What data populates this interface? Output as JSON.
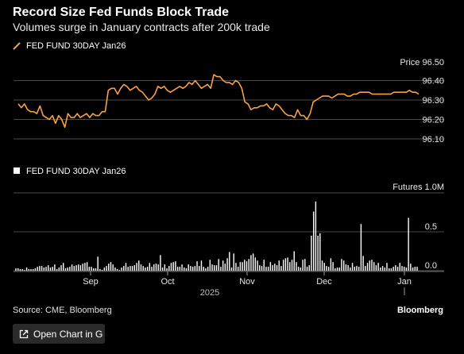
{
  "header": {
    "title": "Record Size Fed Funds Block Trade",
    "subtitle": "Volumes surge in January contracts after 200k trade"
  },
  "footer": {
    "source": "Source: CME, Bloomberg",
    "brand": "Bloomberg",
    "open_chart_label": "Open Chart in G"
  },
  "colors": {
    "price_line": "#f5a04a",
    "volume_bar": "#ffffff",
    "grid": "#4a4a4a",
    "axis_text": "#e6e6e6"
  },
  "chart_data": [
    {
      "type": "line",
      "legend": "FED FUND 30DAY Jan26",
      "unit_label": "Price",
      "ylim": [
        96.1,
        96.5
      ],
      "yticks": [
        96.1,
        96.2,
        96.3,
        96.4,
        96.5
      ],
      "ytick_labels": [
        "96.10",
        "96.20",
        "96.30",
        "96.40",
        "96.50"
      ],
      "grid": true,
      "series": [
        {
          "values": [
            96.28,
            96.26,
            96.28,
            96.25,
            96.24,
            96.24,
            96.23,
            96.27,
            96.22,
            96.21,
            96.2,
            96.22,
            96.18,
            96.22,
            96.2,
            96.16,
            96.23,
            96.21,
            96.21,
            96.23,
            96.21,
            96.22,
            96.23,
            96.21,
            96.23,
            96.22,
            96.22,
            96.24,
            96.24,
            96.35,
            96.36,
            96.36,
            96.33,
            96.36,
            96.38,
            96.37,
            96.35,
            96.36,
            96.37,
            96.35,
            96.34,
            96.32,
            96.3,
            96.31,
            96.33,
            96.37,
            96.36,
            96.37,
            96.35,
            96.34,
            96.35,
            96.36,
            96.37,
            96.36,
            96.37,
            96.39,
            96.38,
            96.4,
            96.38,
            96.36,
            96.37,
            96.38,
            96.36,
            96.43,
            96.42,
            96.42,
            96.4,
            96.39,
            96.39,
            96.38,
            96.4,
            96.39,
            96.36,
            96.29,
            96.28,
            96.25,
            96.26,
            96.26,
            96.27,
            96.27,
            96.28,
            96.26,
            96.25,
            96.28,
            96.27,
            96.25,
            96.23,
            96.22,
            96.22,
            96.21,
            96.25,
            96.22,
            96.22,
            96.2,
            96.23,
            96.29,
            96.3,
            96.31,
            96.32,
            96.32,
            96.32,
            96.31,
            96.32,
            96.33,
            96.33,
            96.33,
            96.32,
            96.32,
            96.33,
            96.33,
            96.34,
            96.34,
            96.34,
            96.34,
            96.33,
            96.33,
            96.33,
            96.33,
            96.33,
            96.33,
            96.33,
            96.34,
            96.34,
            96.34,
            96.34,
            96.34,
            96.35,
            96.34,
            96.34,
            96.33
          ]
        }
      ]
    },
    {
      "type": "bar",
      "legend": "FED FUND 30DAY Jan26",
      "unit_label": "Futures 1.0M",
      "ylim": [
        -0.04,
        0.95
      ],
      "yticks": [
        0.0,
        0.5
      ],
      "ytick_labels": [
        "0.0",
        "0.5"
      ],
      "grid": true,
      "series": [
        {
          "values": [
            0.03,
            0.03,
            0.02,
            0.02,
            0.01,
            0.04,
            0.02,
            0.02,
            0.02,
            0.03,
            0.05,
            0.06,
            0.06,
            0.04,
            0.05,
            0.07,
            0.04,
            0.05,
            0.08,
            0.02,
            0.04,
            0.07,
            0.1,
            0.03,
            0.04,
            0.05,
            0.08,
            0.06,
            0.07,
            0.08,
            0.07,
            0.09,
            0.1,
            0.11,
            0.05,
            0.05,
            0.03,
            0.03,
            0.18,
            0.02,
            0.01,
            0.04,
            0.06,
            0.09,
            0.11,
            0.08,
            0.04,
            0.02,
            0.01,
            0.04,
            0.06,
            0.1,
            0.05,
            0.06,
            0.06,
            0.07,
            0.1,
            0.13,
            0.08,
            0.06,
            0.04,
            0.05,
            0.1,
            0.05,
            0.08,
            0.09,
            0.08,
            0.2,
            0.04,
            0.08,
            0.03,
            0.06,
            0.1,
            0.11,
            0.12,
            0.05,
            0.05,
            0.08,
            0.04,
            0.03,
            0.08,
            0.06,
            0.05,
            0.06,
            0.12,
            0.06,
            0.13,
            0.05,
            0.03,
            0.05,
            0.14,
            0.08,
            0.07,
            0.07,
            0.15,
            0.05,
            0.13,
            0.09,
            0.16,
            0.24,
            0.04,
            0.22,
            0.1,
            0.05,
            0.11,
            0.11,
            0.14,
            0.12,
            0.15,
            0.2,
            0.22,
            0.17,
            0.13,
            0.07,
            0.06,
            0.14,
            0.05,
            0.05,
            0.11,
            0.07,
            0.09,
            0.07,
            0.13,
            0.06,
            0.14,
            0.16,
            0.17,
            0.11,
            0.14,
            0.25,
            0.11,
            0.05,
            0.04,
            0.14,
            0.15,
            0.05,
            0.07,
            0.45,
            0.76,
            0.89,
            0.45,
            0.48,
            0.13,
            0.1,
            0.06,
            0.05,
            0.16,
            0.11,
            0.03,
            0.04,
            0.04,
            0.15,
            0.13,
            0.08,
            0.07,
            0.04,
            0.1,
            0.05,
            0.06,
            0.05,
            0.6,
            0.19,
            0.06,
            0.1,
            0.13,
            0.14,
            0.11,
            0.07,
            0.1,
            0.04,
            0.06,
            0.04,
            0.1,
            0.03,
            0.03,
            0.05,
            0.07,
            0.05,
            0.1,
            0.06,
            0.05,
            0.04,
            0.68,
            0.09,
            0.04,
            0.05,
            0.05
          ]
        }
      ]
    }
  ],
  "x_axis": {
    "tick_labels": [
      "Sep",
      "Oct",
      "Nov",
      "Dec",
      "Jan"
    ],
    "year_label": "2025"
  }
}
